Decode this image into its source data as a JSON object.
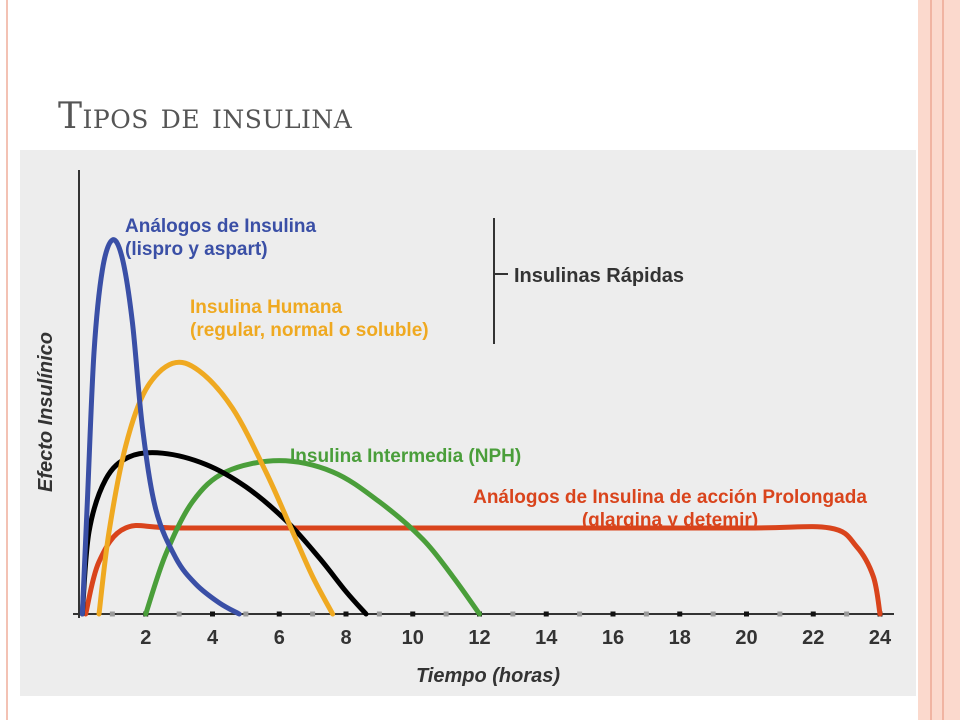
{
  "slide": {
    "title": "Tipos de insulina"
  },
  "colors": {
    "accent_border": "#fbd9cd",
    "panel_bg": "#ededed",
    "title_text": "#555555"
  },
  "chart_data": {
    "type": "line",
    "title": "",
    "xlabel": "Tiempo (horas)",
    "ylabel": "Efecto Insulínico",
    "xlim": [
      0,
      24
    ],
    "ylim": [
      0,
      1
    ],
    "xticks": [
      2,
      4,
      6,
      8,
      10,
      12,
      14,
      16,
      18,
      20,
      22,
      24
    ],
    "xtick_labels": [
      "2",
      "4",
      "6",
      "8",
      "10",
      "12",
      "14",
      "16",
      "18",
      "20",
      "22",
      "24"
    ],
    "grid": false,
    "series": [
      {
        "key": "analogos",
        "color": "#3a4fa6",
        "label_color": "#3a4fa6",
        "label": [
          "Análogos de Insulina",
          "(lispro y aspart)"
        ],
        "points": [
          [
            0.1,
            0.0
          ],
          [
            0.25,
            0.3
          ],
          [
            0.45,
            0.7
          ],
          [
            0.7,
            0.92
          ],
          [
            1.0,
            1.0
          ],
          [
            1.3,
            0.95
          ],
          [
            1.6,
            0.78
          ],
          [
            1.9,
            0.5
          ],
          [
            2.3,
            0.28
          ],
          [
            2.9,
            0.15
          ],
          [
            3.5,
            0.08
          ],
          [
            4.2,
            0.03
          ],
          [
            4.8,
            0.0
          ]
        ]
      },
      {
        "key": "humana",
        "color": "#efa921",
        "label_color": "#efa921",
        "label": [
          "Insulina Humana",
          "(regular, normal o soluble)"
        ],
        "points": [
          [
            0.6,
            0.0
          ],
          [
            0.9,
            0.22
          ],
          [
            1.4,
            0.45
          ],
          [
            2.0,
            0.6
          ],
          [
            2.8,
            0.67
          ],
          [
            3.6,
            0.65
          ],
          [
            4.6,
            0.55
          ],
          [
            5.6,
            0.38
          ],
          [
            6.4,
            0.22
          ],
          [
            7.0,
            0.1
          ],
          [
            7.6,
            0.0
          ]
        ]
      },
      {
        "key": "intermedia",
        "color": "#4a9e3a",
        "label_color": "#4a9e3a",
        "label": [
          "Insulina Intermedia (NPH)"
        ],
        "points": [
          [
            2.0,
            0.0
          ],
          [
            2.6,
            0.16
          ],
          [
            3.4,
            0.3
          ],
          [
            4.4,
            0.38
          ],
          [
            6.0,
            0.41
          ],
          [
            7.6,
            0.38
          ],
          [
            9.0,
            0.3
          ],
          [
            10.3,
            0.2
          ],
          [
            11.2,
            0.1
          ],
          [
            12.0,
            0.0
          ]
        ]
      },
      {
        "key": "prolongada",
        "color": "#d9441c",
        "label_color": "#d9441c",
        "label": [
          "Análogos de Insulina de acción Prolongada",
          "(glargina y detemir)"
        ],
        "points": [
          [
            0.2,
            0.0
          ],
          [
            0.6,
            0.14
          ],
          [
            1.4,
            0.23
          ],
          [
            3.0,
            0.23
          ],
          [
            8.0,
            0.23
          ],
          [
            14.0,
            0.23
          ],
          [
            20.0,
            0.23
          ],
          [
            22.5,
            0.23
          ],
          [
            23.3,
            0.18
          ],
          [
            23.8,
            0.1
          ],
          [
            24.0,
            0.0
          ]
        ]
      },
      {
        "key": "negra",
        "color": "#000000",
        "label_color": "#000000",
        "label": [],
        "points": [
          [
            0.1,
            0.0
          ],
          [
            0.3,
            0.22
          ],
          [
            0.8,
            0.36
          ],
          [
            1.5,
            0.42
          ],
          [
            2.5,
            0.43
          ],
          [
            3.8,
            0.4
          ],
          [
            5.0,
            0.34
          ],
          [
            6.2,
            0.25
          ],
          [
            7.2,
            0.15
          ],
          [
            8.0,
            0.06
          ],
          [
            8.6,
            0.0
          ]
        ]
      }
    ],
    "annotations": [
      {
        "text": "Insulinas Rápidas",
        "groups": [
          "analogos",
          "humana"
        ]
      }
    ]
  }
}
